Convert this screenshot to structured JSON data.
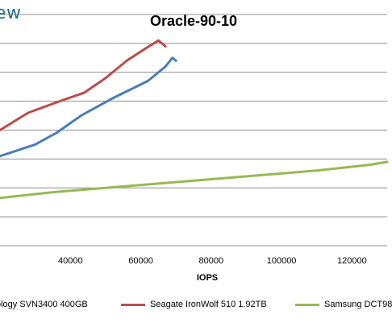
{
  "watermark": "ew",
  "chart_data": {
    "type": "line",
    "title": "Oracle-90-10",
    "xlabel": "IOPS",
    "ylabel": "",
    "xlim": [
      20000,
      130000
    ],
    "ylim": [
      0,
      8
    ],
    "x_ticks": [
      40000,
      60000,
      80000,
      100000,
      120000
    ],
    "x_tick_labels": [
      "40000",
      "60000",
      "80000",
      "100000",
      "120000"
    ],
    "y_gridlines": [
      0,
      1,
      2,
      3,
      4,
      5,
      6,
      7,
      8
    ],
    "grid": true,
    "legend_position": "bottom",
    "series": [
      {
        "name": "ology SVN3400 400GB",
        "color": "#4a7ebb",
        "points": [
          [
            20000,
            3.1
          ],
          [
            30000,
            3.5
          ],
          [
            36000,
            3.9
          ],
          [
            43000,
            4.5
          ],
          [
            52000,
            5.1
          ],
          [
            62000,
            5.7
          ],
          [
            67000,
            6.2
          ],
          [
            69000,
            6.5
          ],
          [
            70000,
            6.4
          ]
        ]
      },
      {
        "name": "Seagate IronWolf 510 1.92TB",
        "color": "#be4b48",
        "points": [
          [
            20000,
            4.0
          ],
          [
            28000,
            4.6
          ],
          [
            37000,
            5.0
          ],
          [
            44000,
            5.3
          ],
          [
            50000,
            5.8
          ],
          [
            56000,
            6.4
          ],
          [
            61000,
            6.8
          ],
          [
            65000,
            7.1
          ],
          [
            67000,
            6.9
          ]
        ]
      },
      {
        "name": "Samsung DCT98",
        "color": "#98b954",
        "points": [
          [
            20000,
            1.65
          ],
          [
            35000,
            1.85
          ],
          [
            50000,
            2.0
          ],
          [
            65000,
            2.15
          ],
          [
            80000,
            2.3
          ],
          [
            95000,
            2.45
          ],
          [
            110000,
            2.6
          ],
          [
            125000,
            2.8
          ],
          [
            130000,
            2.9
          ]
        ]
      }
    ]
  }
}
